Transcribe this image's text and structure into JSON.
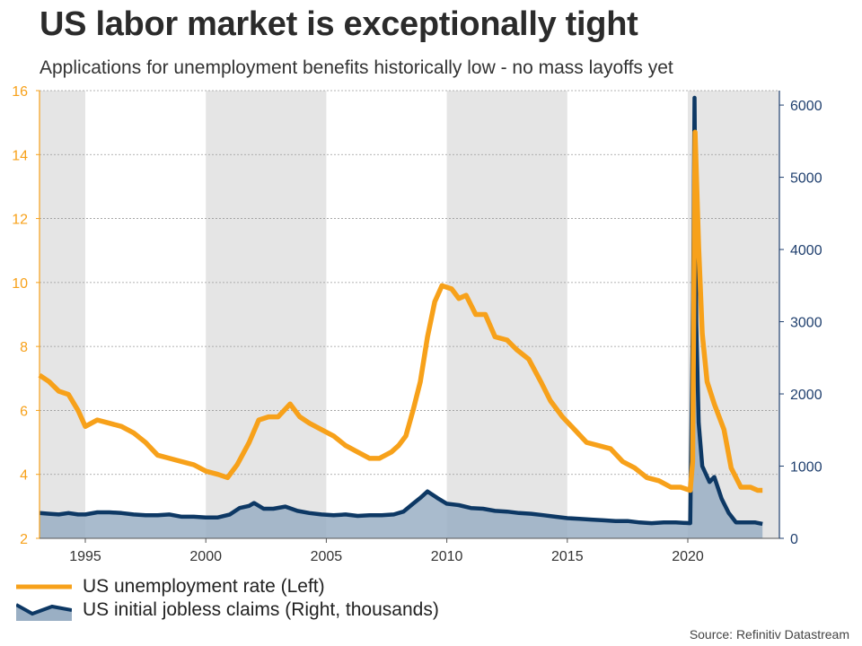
{
  "title": "US labor market is exceptionally tight",
  "subtitle": "Applications for unemployment benefits historically low - no mass layoffs yet",
  "source": "Source: Refinitiv Datastream",
  "colors": {
    "unemployment": "#f7a11a",
    "claims_line": "#0d3864",
    "claims_fill": "#9aafc4",
    "shading": "#e5e5e5",
    "left_axis": "#f7a11a",
    "right_axis": "#1f3f6e"
  },
  "legend": {
    "unemployment": "US unemployment rate (Left)",
    "claims": "US initial jobless claims (Right, thousands)"
  },
  "chart_data": {
    "type": "line",
    "title": "US labor market is exceptionally tight",
    "subtitle": "Applications for unemployment benefits historically low - no mass layoffs yet",
    "x_range": [
      1993.1,
      2023.8
    ],
    "x_ticks": [
      1995,
      2000,
      2005,
      2010,
      2015,
      2020
    ],
    "shaded_periods": [
      [
        1993.1,
        1995
      ],
      [
        2000,
        2005
      ],
      [
        2010,
        2015
      ],
      [
        2020,
        2023.8
      ]
    ],
    "y_left": {
      "range": [
        2,
        16
      ],
      "ticks": [
        2,
        4,
        6,
        8,
        10,
        12,
        14,
        16
      ],
      "grid": true
    },
    "y_right": {
      "range": [
        0,
        6200
      ],
      "ticks": [
        0,
        1000,
        2000,
        3000,
        4000,
        5000,
        6000
      ]
    },
    "series": [
      {
        "name": "US unemployment rate (Left)",
        "axis": "left",
        "points": [
          [
            1993.1,
            7.1
          ],
          [
            1993.5,
            6.9
          ],
          [
            1993.9,
            6.6
          ],
          [
            1994.3,
            6.5
          ],
          [
            1994.7,
            6.0
          ],
          [
            1995.0,
            5.5
          ],
          [
            1995.5,
            5.7
          ],
          [
            1996.0,
            5.6
          ],
          [
            1996.5,
            5.5
          ],
          [
            1997.0,
            5.3
          ],
          [
            1997.5,
            5.0
          ],
          [
            1998.0,
            4.6
          ],
          [
            1998.5,
            4.5
          ],
          [
            1999.0,
            4.4
          ],
          [
            1999.5,
            4.3
          ],
          [
            2000.0,
            4.1
          ],
          [
            2000.5,
            4.0
          ],
          [
            2000.9,
            3.9
          ],
          [
            2001.3,
            4.3
          ],
          [
            2001.8,
            5.0
          ],
          [
            2002.2,
            5.7
          ],
          [
            2002.6,
            5.8
          ],
          [
            2003.0,
            5.8
          ],
          [
            2003.5,
            6.2
          ],
          [
            2003.9,
            5.8
          ],
          [
            2004.3,
            5.6
          ],
          [
            2004.8,
            5.4
          ],
          [
            2005.3,
            5.2
          ],
          [
            2005.8,
            4.9
          ],
          [
            2006.3,
            4.7
          ],
          [
            2006.8,
            4.5
          ],
          [
            2007.2,
            4.5
          ],
          [
            2007.7,
            4.7
          ],
          [
            2008.0,
            4.9
          ],
          [
            2008.3,
            5.2
          ],
          [
            2008.6,
            6.0
          ],
          [
            2008.9,
            6.9
          ],
          [
            2009.2,
            8.3
          ],
          [
            2009.5,
            9.4
          ],
          [
            2009.8,
            9.9
          ],
          [
            2010.2,
            9.8
          ],
          [
            2010.5,
            9.5
          ],
          [
            2010.8,
            9.6
          ],
          [
            2011.2,
            9.0
          ],
          [
            2011.6,
            9.0
          ],
          [
            2012.0,
            8.3
          ],
          [
            2012.5,
            8.2
          ],
          [
            2012.9,
            7.9
          ],
          [
            2013.4,
            7.6
          ],
          [
            2013.9,
            6.9
          ],
          [
            2014.3,
            6.3
          ],
          [
            2014.8,
            5.8
          ],
          [
            2015.3,
            5.4
          ],
          [
            2015.8,
            5.0
          ],
          [
            2016.3,
            4.9
          ],
          [
            2016.8,
            4.8
          ],
          [
            2017.3,
            4.4
          ],
          [
            2017.8,
            4.2
          ],
          [
            2018.3,
            3.9
          ],
          [
            2018.8,
            3.8
          ],
          [
            2019.3,
            3.6
          ],
          [
            2019.7,
            3.6
          ],
          [
            2020.1,
            3.5
          ],
          [
            2020.2,
            4.4
          ],
          [
            2020.3,
            14.7
          ],
          [
            2020.45,
            11.1
          ],
          [
            2020.6,
            8.4
          ],
          [
            2020.8,
            6.9
          ],
          [
            2021.1,
            6.2
          ],
          [
            2021.5,
            5.4
          ],
          [
            2021.8,
            4.2
          ],
          [
            2022.2,
            3.6
          ],
          [
            2022.6,
            3.6
          ],
          [
            2022.9,
            3.5
          ],
          [
            2023.1,
            3.5
          ]
        ]
      },
      {
        "name": "US initial jobless claims (Right, thousands)",
        "axis": "right",
        "points": [
          [
            1993.1,
            350
          ],
          [
            1993.5,
            340
          ],
          [
            1993.9,
            330
          ],
          [
            1994.3,
            350
          ],
          [
            1994.7,
            330
          ],
          [
            1995.0,
            330
          ],
          [
            1995.5,
            360
          ],
          [
            1996.0,
            360
          ],
          [
            1996.5,
            350
          ],
          [
            1997.0,
            330
          ],
          [
            1997.5,
            320
          ],
          [
            1998.0,
            320
          ],
          [
            1998.5,
            330
          ],
          [
            1999.0,
            300
          ],
          [
            1999.5,
            300
          ],
          [
            2000.0,
            290
          ],
          [
            2000.5,
            290
          ],
          [
            2001.0,
            330
          ],
          [
            2001.4,
            420
          ],
          [
            2001.8,
            450
          ],
          [
            2002.0,
            490
          ],
          [
            2002.4,
            410
          ],
          [
            2002.8,
            410
          ],
          [
            2003.3,
            440
          ],
          [
            2003.8,
            380
          ],
          [
            2004.3,
            350
          ],
          [
            2004.8,
            330
          ],
          [
            2005.3,
            320
          ],
          [
            2005.8,
            330
          ],
          [
            2006.3,
            310
          ],
          [
            2006.8,
            320
          ],
          [
            2007.3,
            320
          ],
          [
            2007.8,
            330
          ],
          [
            2008.2,
            370
          ],
          [
            2008.6,
            480
          ],
          [
            2008.9,
            560
          ],
          [
            2009.2,
            650
          ],
          [
            2009.6,
            560
          ],
          [
            2010.0,
            480
          ],
          [
            2010.5,
            460
          ],
          [
            2011.0,
            420
          ],
          [
            2011.5,
            410
          ],
          [
            2012.0,
            380
          ],
          [
            2012.5,
            370
          ],
          [
            2013.0,
            350
          ],
          [
            2013.5,
            340
          ],
          [
            2014.0,
            320
          ],
          [
            2014.5,
            300
          ],
          [
            2015.0,
            280
          ],
          [
            2015.5,
            270
          ],
          [
            2016.0,
            260
          ],
          [
            2016.5,
            250
          ],
          [
            2017.0,
            240
          ],
          [
            2017.5,
            240
          ],
          [
            2018.0,
            220
          ],
          [
            2018.5,
            210
          ],
          [
            2019.0,
            220
          ],
          [
            2019.5,
            220
          ],
          [
            2020.1,
            210
          ],
          [
            2020.22,
            3300
          ],
          [
            2020.28,
            6100
          ],
          [
            2020.35,
            3000
          ],
          [
            2020.45,
            1600
          ],
          [
            2020.6,
            1000
          ],
          [
            2020.9,
            780
          ],
          [
            2021.1,
            850
          ],
          [
            2021.4,
            550
          ],
          [
            2021.7,
            350
          ],
          [
            2022.0,
            220
          ],
          [
            2022.4,
            220
          ],
          [
            2022.8,
            220
          ],
          [
            2023.1,
            200
          ]
        ]
      }
    ]
  }
}
